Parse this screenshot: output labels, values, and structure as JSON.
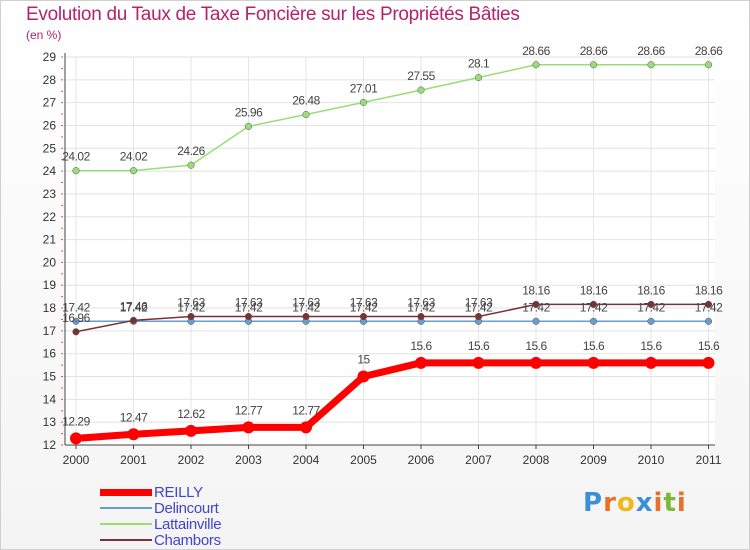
{
  "chart_data": {
    "type": "line",
    "title": "Evolution du Taux de Taxe Foncière sur les Propriétés Bâties",
    "ylabel": "(en %)",
    "xlabel": "",
    "categories": [
      "2000",
      "2001",
      "2002",
      "2003",
      "2004",
      "2005",
      "2006",
      "2007",
      "2008",
      "2009",
      "2010",
      "2011"
    ],
    "ylim": [
      12,
      29
    ],
    "yticks": [
      12,
      13,
      14,
      15,
      16,
      17,
      18,
      19,
      20,
      21,
      22,
      23,
      24,
      25,
      26,
      27,
      28,
      29
    ],
    "grid": true,
    "series": [
      {
        "name": "REILLY",
        "color": "#ff0000",
        "values": [
          12.29,
          12.47,
          12.62,
          12.77,
          12.77,
          15,
          15.6,
          15.6,
          15.6,
          15.6,
          15.6,
          15.6
        ],
        "labels": [
          "12.29",
          "12.47",
          "12.62",
          "12.77",
          "12.77",
          "15",
          "15.6",
          "15.6",
          "15.6",
          "15.6",
          "15.6",
          "15.6"
        ]
      },
      {
        "name": "Delincourt",
        "color": "#6a9ed0",
        "values": [
          17.42,
          17.42,
          17.42,
          17.42,
          17.42,
          17.42,
          17.42,
          17.42,
          17.42,
          17.42,
          17.42,
          17.42
        ],
        "labels": [
          "17.42",
          "17.42",
          "17.42",
          "17.42",
          "17.42",
          "17.42",
          "17.42",
          "17.42",
          "17.42",
          "17.42",
          "17.42",
          "17.42"
        ]
      },
      {
        "name": "Lattainville",
        "color": "#99dd77",
        "values": [
          24.02,
          24.02,
          24.26,
          25.96,
          26.48,
          27.01,
          27.55,
          28.1,
          28.66,
          28.66,
          28.66,
          28.66
        ],
        "labels": [
          "24.02",
          "24.02",
          "24.26",
          "25.96",
          "26.48",
          "27.01",
          "27.55",
          "28.1",
          "28.66",
          "28.66",
          "28.66",
          "28.66"
        ]
      },
      {
        "name": "Chambors",
        "color": "#7a3238",
        "values": [
          16.96,
          17.46,
          17.63,
          17.63,
          17.63,
          17.63,
          17.63,
          17.63,
          18.16,
          18.16,
          18.16,
          18.16
        ],
        "labels": [
          "16.96",
          "17.46",
          "17.63",
          "17.63",
          "17.63",
          "17.63",
          "17.63",
          "17.63",
          "18.16",
          "18.16",
          "18.16",
          "18.16"
        ]
      }
    ]
  },
  "legend": [
    {
      "label": "REILLY",
      "color": "#ff0000"
    },
    {
      "label": "Delincourt",
      "color": "#6a9ed0"
    },
    {
      "label": "Lattainville",
      "color": "#99dd77"
    },
    {
      "label": "Chambors",
      "color": "#7a3238"
    }
  ],
  "logo": {
    "text": "Proxiti",
    "letters": [
      "P",
      "r",
      "o",
      "x",
      "i",
      "t",
      "i"
    ],
    "colors": [
      "#3b8fd8",
      "#e8702a",
      "#f0b81c",
      "#3b8fd8",
      "#e8702a",
      "#7bb83a",
      "#e8702a"
    ]
  }
}
